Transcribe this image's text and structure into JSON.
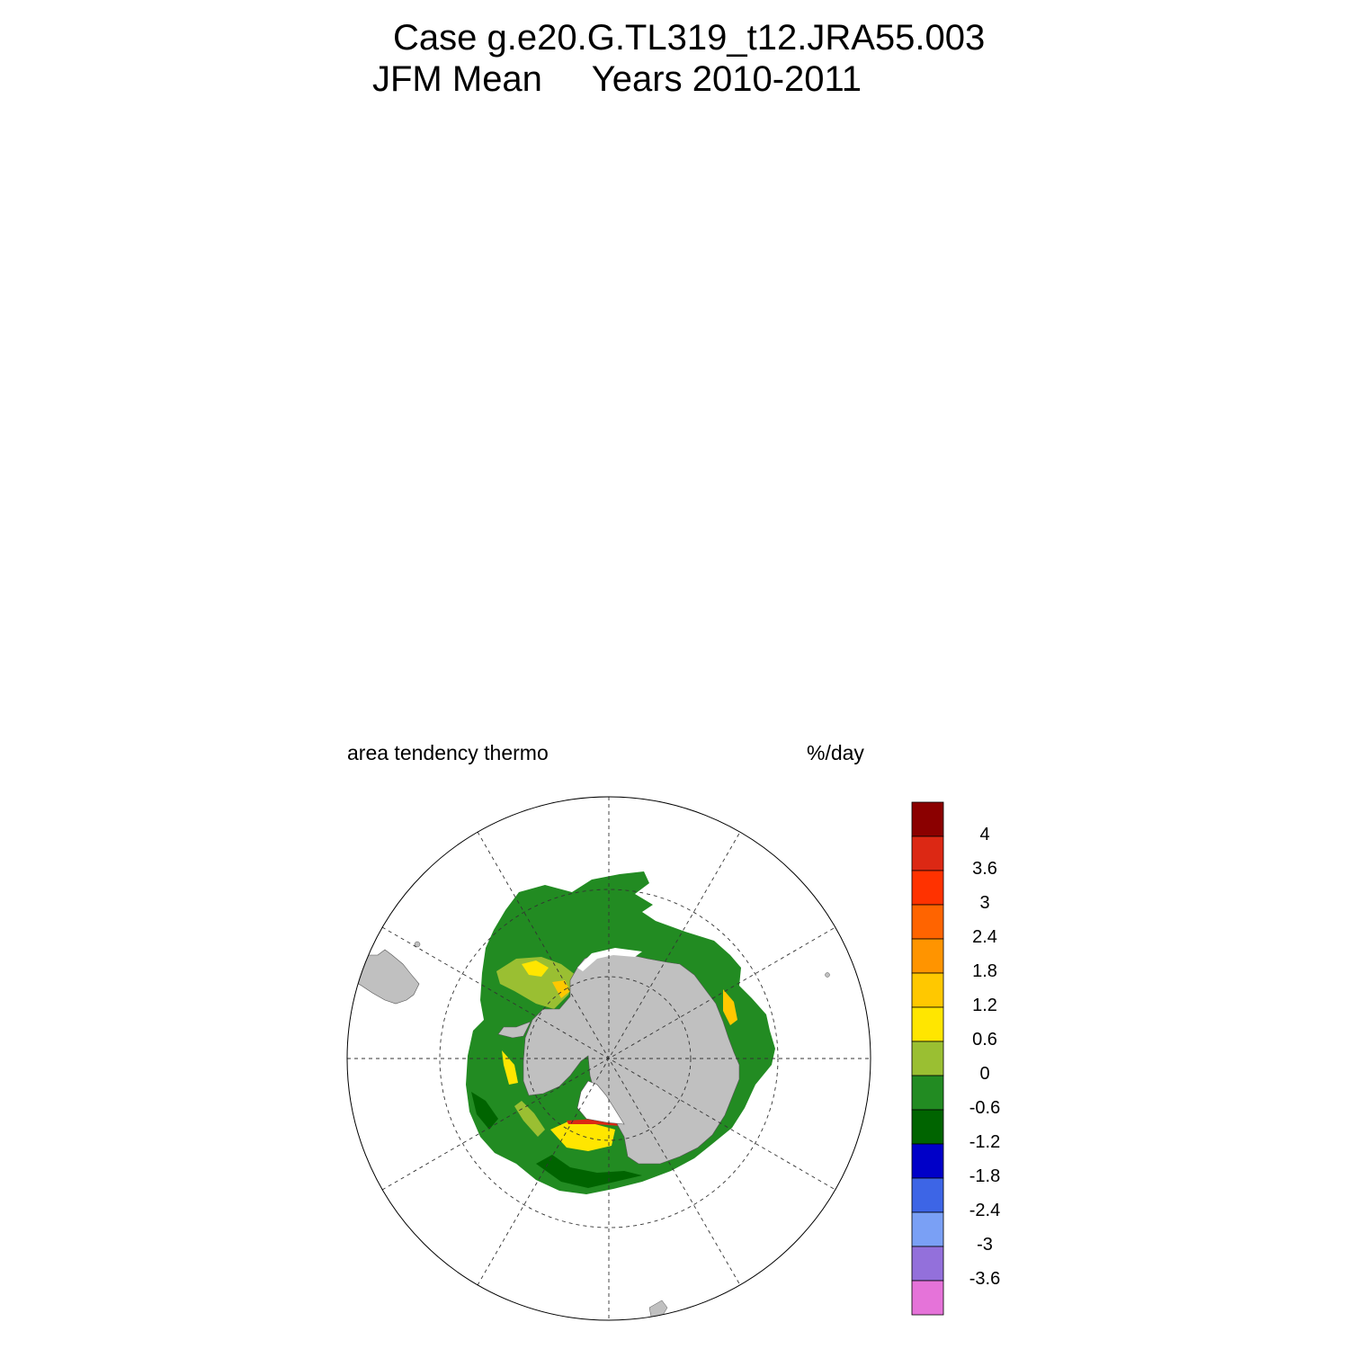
{
  "title": {
    "line1": "Case g.e20.G.TL319_t12.JRA55.003",
    "line2": "JFM Mean     Years 2010-2011"
  },
  "subtitle_left": "area tendency thermo",
  "subtitle_right": "%/day",
  "colorbar": {
    "colors": [
      "#e573d9",
      "#9370db",
      "#7aa0f5",
      "#3d65e6",
      "#0000c8",
      "#006400",
      "#228b22",
      "#9abf32",
      "#ffe600",
      "#ffc800",
      "#ff9400",
      "#ff6400",
      "#ff3200",
      "#dc2814",
      "#8b0000"
    ],
    "levels": [
      "-3.6",
      "-3",
      "-2.4",
      "-1.8",
      "-1.2",
      "-0.6",
      "0",
      "0.6",
      "1.2",
      "1.8",
      "2.4",
      "3",
      "3.6",
      "4"
    ]
  },
  "map": {
    "projection": "south-polar-stereographic",
    "land_color": "#c0c0c0",
    "ocean_background": "#ffffff",
    "dominant_field_color": "#228b22",
    "grid": true
  }
}
